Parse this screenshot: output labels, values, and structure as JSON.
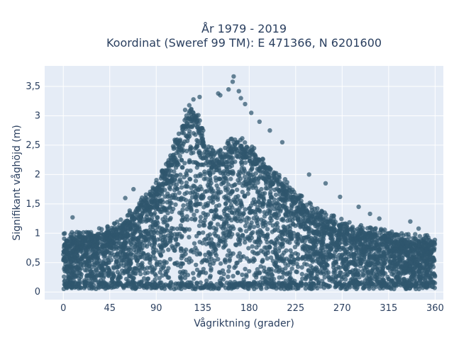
{
  "chart_data": {
    "type": "scatter",
    "title_line1": "År 1979 - 2019",
    "title_line2": "Koordinat (Sweref 99 TM): E 471366, N 6201600",
    "xlabel": "Vågriktning (grader)",
    "ylabel": "Signifikant våghöjd (m)",
    "xlim": [
      -18,
      368
    ],
    "ylim": [
      -0.13,
      3.85
    ],
    "xticks": [
      0,
      45,
      90,
      135,
      180,
      225,
      270,
      315,
      360
    ],
    "xtick_labels": [
      "0",
      "45",
      "90",
      "135",
      "180",
      "225",
      "270",
      "315",
      "360"
    ],
    "yticks": [
      0,
      0.5,
      1,
      1.5,
      2,
      2.5,
      3,
      3.5
    ],
    "ytick_labels": [
      "0",
      "0,5",
      "1",
      "1,5",
      "2",
      "2,5",
      "3",
      "3,5"
    ],
    "grid": true,
    "marker_color": "#2f566e",
    "plot_background": "#e5ecf6",
    "envelope": {
      "description": "upper envelope of dense point cloud (direction, height)",
      "x": [
        0,
        20,
        45,
        60,
        75,
        90,
        100,
        110,
        120,
        125,
        130,
        140,
        150,
        160,
        170,
        180,
        190,
        200,
        210,
        225,
        240,
        255,
        270,
        285,
        300,
        315,
        330,
        345,
        360
      ],
      "y": [
        0.9,
        0.95,
        1.05,
        1.2,
        1.5,
        1.8,
        2.1,
        2.6,
        2.95,
        3.05,
        3.0,
        2.4,
        2.3,
        2.5,
        2.55,
        2.45,
        2.25,
        2.05,
        1.9,
        1.65,
        1.4,
        1.25,
        1.15,
        1.05,
        1.0,
        0.95,
        0.9,
        0.88,
        0.85
      ]
    },
    "outliers": [
      {
        "x": 9,
        "y": 1.27
      },
      {
        "x": 60,
        "y": 1.6
      },
      {
        "x": 68,
        "y": 1.75
      },
      {
        "x": 118,
        "y": 3.1
      },
      {
        "x": 122,
        "y": 3.18
      },
      {
        "x": 126,
        "y": 3.28
      },
      {
        "x": 132,
        "y": 3.32
      },
      {
        "x": 150,
        "y": 3.38
      },
      {
        "x": 152,
        "y": 3.35
      },
      {
        "x": 160,
        "y": 3.45
      },
      {
        "x": 164,
        "y": 3.58
      },
      {
        "x": 165,
        "y": 3.67
      },
      {
        "x": 170,
        "y": 3.42
      },
      {
        "x": 172,
        "y": 3.3
      },
      {
        "x": 176,
        "y": 3.2
      },
      {
        "x": 182,
        "y": 3.05
      },
      {
        "x": 190,
        "y": 2.9
      },
      {
        "x": 200,
        "y": 2.75
      },
      {
        "x": 212,
        "y": 2.55
      },
      {
        "x": 238,
        "y": 2.0
      },
      {
        "x": 254,
        "y": 1.85
      },
      {
        "x": 268,
        "y": 1.62
      },
      {
        "x": 286,
        "y": 1.45
      },
      {
        "x": 297,
        "y": 1.33
      },
      {
        "x": 306,
        "y": 1.25
      },
      {
        "x": 336,
        "y": 1.2
      },
      {
        "x": 344,
        "y": 1.08
      }
    ]
  }
}
